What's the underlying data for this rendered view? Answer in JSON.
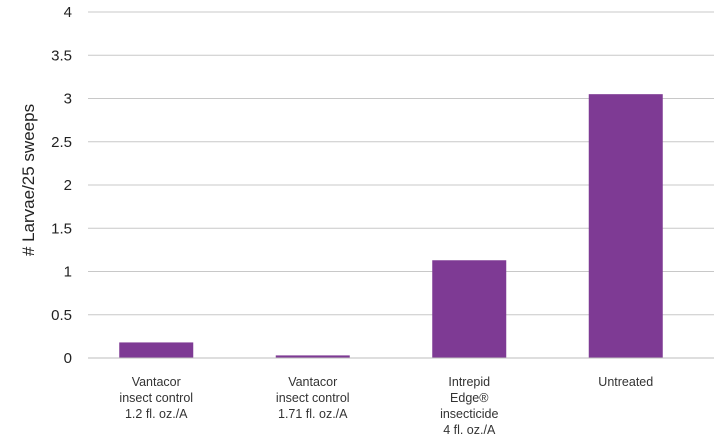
{
  "chart_data": {
    "type": "bar",
    "ylabel": "# Larvae/25 sweeps",
    "xlabel": "",
    "ylim": [
      0,
      4
    ],
    "yticks": [
      "0",
      "0.5",
      "1",
      "1.5",
      "2",
      "2.5",
      "3",
      "3.5",
      "4"
    ],
    "grid": true,
    "bar_color": "#7e3a94",
    "categories": [
      [
        "Vantacor",
        "insect control",
        "1.2 fl. oz./A"
      ],
      [
        "Vantacor",
        "insect control",
        "1.71 fl. oz./A"
      ],
      [
        "Intrepid",
        "Edge®",
        "insecticide",
        "4 fl. oz./A"
      ],
      [
        "Untreated"
      ]
    ],
    "values": [
      0.18,
      0.03,
      1.13,
      3.05
    ]
  }
}
